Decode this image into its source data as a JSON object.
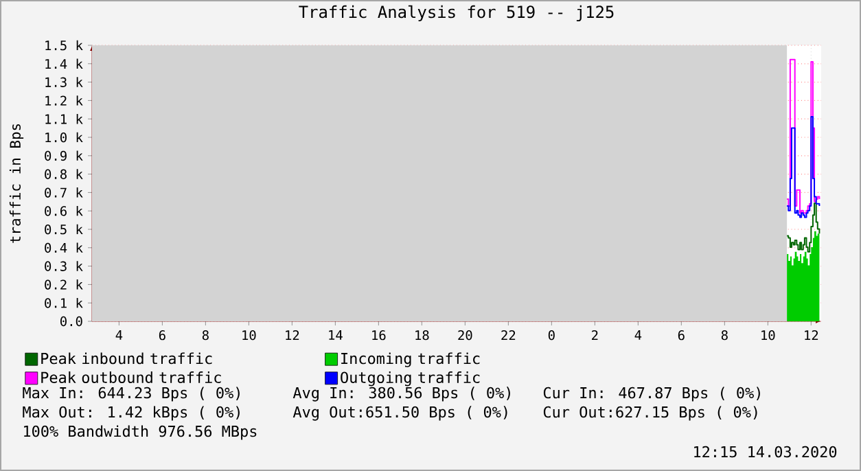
{
  "chart_data": {
    "type": "step",
    "title": "Traffic Analysis for 519 -- j125",
    "ylabel": "traffic in Bps",
    "x": [
      "2020-03-14T10:53",
      "2020-03-14T10:57",
      "2020-03-14T11:02",
      "2020-03-14T11:06",
      "2020-03-14T11:11",
      "2020-03-14T11:15",
      "2020-03-14T11:20",
      "2020-03-14T11:24",
      "2020-03-14T11:29",
      "2020-03-14T11:33",
      "2020-03-14T11:38",
      "2020-03-14T11:42",
      "2020-03-14T11:47",
      "2020-03-14T11:51",
      "2020-03-14T11:56",
      "2020-03-14T12:00",
      "2020-03-14T12:05",
      "2020-03-14T12:09",
      "2020-03-14T12:14",
      "2020-03-14T12:18",
      "2020-03-14T12:23"
    ],
    "series": [
      {
        "name": "Peak inbound traffic",
        "color": "#006600",
        "values": [
          465,
          453,
          403,
          428,
          416,
          440,
          416,
          390,
          428,
          390,
          416,
          453,
          403,
          378,
          428,
          515,
          577,
          642,
          539,
          502,
          477
        ]
      },
      {
        "name": "Incoming traffic",
        "type": "area",
        "color": "#00cc00",
        "values": [
          366,
          328,
          353,
          304,
          341,
          378,
          353,
          328,
          366,
          316,
          353,
          378,
          341,
          304,
          366,
          403,
          453,
          490,
          465,
          477,
          468
        ]
      },
      {
        "name": "Peak outbound traffic",
        "color": "#ff00ff",
        "values": [
          664,
          627,
          1423,
          1423,
          1423,
          627,
          714,
          714,
          589,
          602,
          589,
          589,
          602,
          627,
          639,
          1410,
          1050,
          651,
          664,
          677,
          664
        ]
      },
      {
        "name": "Outgoing traffic",
        "color": "#0000ff",
        "values": [
          627,
          602,
          776,
          1050,
          1050,
          589,
          602,
          577,
          565,
          589,
          577,
          565,
          589,
          602,
          627,
          1112,
          776,
          677,
          639,
          639,
          627
        ]
      }
    ],
    "xlim": [
      "2020-03-13T02:45",
      "2020-03-14T12:28"
    ],
    "xticks": [
      {
        "value": "2020-03-13T04:00",
        "label": "4"
      },
      {
        "value": "2020-03-13T06:00",
        "label": "6"
      },
      {
        "value": "2020-03-13T08:00",
        "label": "8"
      },
      {
        "value": "2020-03-13T10:00",
        "label": "10"
      },
      {
        "value": "2020-03-13T12:00",
        "label": "12"
      },
      {
        "value": "2020-03-13T14:00",
        "label": "14"
      },
      {
        "value": "2020-03-13T16:00",
        "label": "16"
      },
      {
        "value": "2020-03-13T18:00",
        "label": "18"
      },
      {
        "value": "2020-03-13T20:00",
        "label": "20"
      },
      {
        "value": "2020-03-13T22:00",
        "label": "22"
      },
      {
        "value": "2020-03-14T00:00",
        "label": "0"
      },
      {
        "value": "2020-03-14T02:00",
        "label": "2"
      },
      {
        "value": "2020-03-14T04:00",
        "label": "4"
      },
      {
        "value": "2020-03-14T06:00",
        "label": "6"
      },
      {
        "value": "2020-03-14T08:00",
        "label": "8"
      },
      {
        "value": "2020-03-14T10:00",
        "label": "10"
      },
      {
        "value": "2020-03-14T12:00",
        "label": "12"
      }
    ],
    "ylim": [
      0,
      1500
    ],
    "yticks": [
      {
        "value": 0,
        "label": "0.0"
      },
      {
        "value": 100,
        "label": "0.1 k"
      },
      {
        "value": 200,
        "label": "0.2 k"
      },
      {
        "value": 300,
        "label": "0.3 k"
      },
      {
        "value": 400,
        "label": "0.4 k"
      },
      {
        "value": 500,
        "label": "0.5 k"
      },
      {
        "value": 600,
        "label": "0.6 k"
      },
      {
        "value": 700,
        "label": "0.7 k"
      },
      {
        "value": 800,
        "label": "0.8 k"
      },
      {
        "value": 900,
        "label": "0.9 k"
      },
      {
        "value": 1000,
        "label": "1.0 k"
      },
      {
        "value": 1100,
        "label": "1.1 k"
      },
      {
        "value": 1200,
        "label": "1.2 k"
      },
      {
        "value": 1300,
        "label": "1.3 k"
      },
      {
        "value": 1400,
        "label": "1.4 k"
      },
      {
        "value": 1500,
        "label": "1.5 k"
      }
    ],
    "bands": [
      {
        "axis": "x",
        "from": "2020-03-13T02:45",
        "to": "2020-03-14T10:53",
        "color": "#d3d3d3"
      }
    ],
    "grid": true,
    "legend": "bottom",
    "annotations": [
      "Max In: 644.23 Bps ( 0%)",
      "Avg In: 380.56 Bps ( 0%)",
      "Cur In: 467.87 Bps ( 0%)",
      "Max Out: 1.42 kBps ( 0%)",
      "Avg Out:651.50 Bps ( 0%)",
      "Cur Out:627.15 Bps ( 0%)",
      "100% Bandwidth 976.56 MBps",
      "12:15 14.03.2020"
    ]
  }
}
